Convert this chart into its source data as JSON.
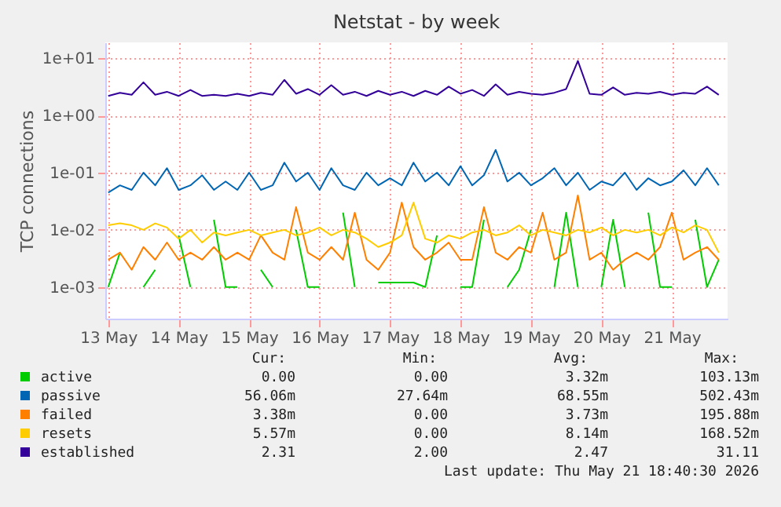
{
  "chart_data": {
    "type": "line",
    "title": "Netstat - by week",
    "ylabel": "TCP connections",
    "x": [
      "2026-05-13T00:00",
      "2026-05-13T04:00",
      "2026-05-13T08:00",
      "2026-05-13T12:00",
      "2026-05-13T16:00",
      "2026-05-13T20:00",
      "2026-05-14T00:00",
      "2026-05-14T04:00",
      "2026-05-14T08:00",
      "2026-05-14T12:00",
      "2026-05-14T16:00",
      "2026-05-14T20:00",
      "2026-05-15T00:00",
      "2026-05-15T04:00",
      "2026-05-15T08:00",
      "2026-05-15T12:00",
      "2026-05-15T16:00",
      "2026-05-15T20:00",
      "2026-05-16T00:00",
      "2026-05-16T04:00",
      "2026-05-16T08:00",
      "2026-05-16T12:00",
      "2026-05-16T16:00",
      "2026-05-16T20:00",
      "2026-05-17T00:00",
      "2026-05-17T04:00",
      "2026-05-17T08:00",
      "2026-05-17T12:00",
      "2026-05-17T16:00",
      "2026-05-17T20:00",
      "2026-05-18T00:00",
      "2026-05-18T04:00",
      "2026-05-18T08:00",
      "2026-05-18T12:00",
      "2026-05-18T16:00",
      "2026-05-18T20:00",
      "2026-05-19T00:00",
      "2026-05-19T04:00",
      "2026-05-19T08:00",
      "2026-05-19T12:00",
      "2026-05-19T16:00",
      "2026-05-19T20:00",
      "2026-05-20T00:00",
      "2026-05-20T04:00",
      "2026-05-20T08:00",
      "2026-05-20T12:00",
      "2026-05-20T16:00",
      "2026-05-20T20:00",
      "2026-05-21T00:00",
      "2026-05-21T04:00",
      "2026-05-21T08:00",
      "2026-05-21T12:00",
      "2026-05-21T16:00"
    ],
    "series": [
      {
        "name": "active",
        "color": "#00cc00",
        "values": [
          0.001,
          0.004,
          null,
          0.001,
          0.002,
          null,
          0.008,
          0.001,
          null,
          0.015,
          0.001,
          0.001,
          null,
          0.002,
          0.001,
          null,
          0.01,
          0.001,
          0.001,
          null,
          0.02,
          0.001,
          null,
          0.0012,
          0.0012,
          0.0012,
          0.0012,
          0.001,
          0.008,
          null,
          0.001,
          0.001,
          0.015,
          null,
          0.001,
          0.002,
          0.01,
          null,
          0.001,
          0.02,
          0.001,
          null,
          0.001,
          0.015,
          0.001,
          null,
          0.02,
          0.001,
          0.001,
          null,
          0.015,
          0.001,
          0.003
        ]
      },
      {
        "name": "passive",
        "color": "#0066b3",
        "values": [
          0.045,
          0.06,
          0.05,
          0.1,
          0.06,
          0.12,
          0.05,
          0.06,
          0.09,
          0.05,
          0.07,
          0.05,
          0.1,
          0.05,
          0.06,
          0.15,
          0.07,
          0.1,
          0.05,
          0.12,
          0.06,
          0.05,
          0.1,
          0.06,
          0.08,
          0.06,
          0.15,
          0.07,
          0.1,
          0.06,
          0.13,
          0.06,
          0.09,
          0.25,
          0.07,
          0.1,
          0.06,
          0.08,
          0.12,
          0.06,
          0.1,
          0.05,
          0.07,
          0.06,
          0.1,
          0.05,
          0.08,
          0.06,
          0.07,
          0.11,
          0.06,
          0.12,
          0.06
        ]
      },
      {
        "name": "failed",
        "color": "#ff8000",
        "values": [
          0.003,
          0.004,
          0.002,
          0.005,
          0.003,
          0.006,
          0.003,
          0.004,
          0.003,
          0.005,
          0.003,
          0.004,
          0.003,
          0.008,
          0.004,
          0.003,
          0.025,
          0.004,
          0.003,
          0.005,
          0.003,
          0.02,
          0.003,
          0.002,
          0.004,
          0.03,
          0.005,
          0.003,
          0.004,
          0.006,
          0.003,
          0.003,
          0.025,
          0.004,
          0.003,
          0.005,
          0.004,
          0.02,
          0.003,
          0.004,
          0.04,
          0.003,
          0.004,
          0.002,
          0.003,
          0.004,
          0.003,
          0.005,
          0.02,
          0.003,
          0.004,
          0.005,
          0.003
        ]
      },
      {
        "name": "resets",
        "color": "#ffcc00",
        "values": [
          0.012,
          0.013,
          0.012,
          0.01,
          0.013,
          0.011,
          0.007,
          0.01,
          0.006,
          0.009,
          0.008,
          0.009,
          0.01,
          0.008,
          0.009,
          0.01,
          0.008,
          0.009,
          0.011,
          0.008,
          0.01,
          0.009,
          0.007,
          0.005,
          0.006,
          0.008,
          0.03,
          0.007,
          0.006,
          0.008,
          0.007,
          0.009,
          0.01,
          0.008,
          0.009,
          0.012,
          0.008,
          0.01,
          0.009,
          0.008,
          0.01,
          0.009,
          0.011,
          0.008,
          0.01,
          0.009,
          0.01,
          0.008,
          0.011,
          0.009,
          0.012,
          0.01,
          0.004
        ]
      },
      {
        "name": "established",
        "color": "#330099",
        "values": [
          2.2,
          2.5,
          2.3,
          3.8,
          2.3,
          2.6,
          2.2,
          2.8,
          2.2,
          2.3,
          2.2,
          2.4,
          2.2,
          2.5,
          2.3,
          4.2,
          2.4,
          2.9,
          2.3,
          3.4,
          2.3,
          2.6,
          2.2,
          2.7,
          2.3,
          2.6,
          2.2,
          2.7,
          2.3,
          3.2,
          2.4,
          2.8,
          2.2,
          3.5,
          2.3,
          2.6,
          2.4,
          2.3,
          2.5,
          2.9,
          9.0,
          2.4,
          2.3,
          3.1,
          2.3,
          2.5,
          2.4,
          2.6,
          2.3,
          2.5,
          2.4,
          3.2,
          2.3
        ]
      }
    ],
    "xlim": [
      "2026-05-12T23:00",
      "2026-05-21T19:00"
    ],
    "xticks": [
      {
        "value": "2026-05-13",
        "label": "13 May"
      },
      {
        "value": "2026-05-14",
        "label": "14 May"
      },
      {
        "value": "2026-05-15",
        "label": "15 May"
      },
      {
        "value": "2026-05-16",
        "label": "16 May"
      },
      {
        "value": "2026-05-17",
        "label": "17 May"
      },
      {
        "value": "2026-05-18",
        "label": "18 May"
      },
      {
        "value": "2026-05-19",
        "label": "19 May"
      },
      {
        "value": "2026-05-20",
        "label": "20 May"
      },
      {
        "value": "2026-05-21",
        "label": "21 May"
      }
    ],
    "ylim": [
      0.00028,
      19
    ],
    "yticks": [
      {
        "value": 0.001,
        "label": "1e-03"
      },
      {
        "value": 0.01,
        "label": "1e-02"
      },
      {
        "value": 0.1,
        "label": "1e-01"
      },
      {
        "value": 1,
        "label": "1e+00"
      },
      {
        "value": 10,
        "label": "1e+01"
      }
    ],
    "log": "y",
    "grid": true,
    "legend": "bottom",
    "marker": "none",
    "line_style": "solid",
    "annotations": [
      "Cur:",
      "Min:",
      "Avg:",
      "Max:",
      "0.00",
      "0.00",
      "3.32m",
      "103.13m",
      "56.06m",
      "27.64m",
      "68.55m",
      "502.43m",
      "3.38m",
      "0.00",
      "3.73m",
      "195.88m",
      "5.57m",
      "0.00",
      "8.14m",
      "168.52m",
      "2.31",
      "2.00",
      "2.47",
      "31.11",
      "Last update: Thu May 21 18:40:30 2026"
    ]
  }
}
